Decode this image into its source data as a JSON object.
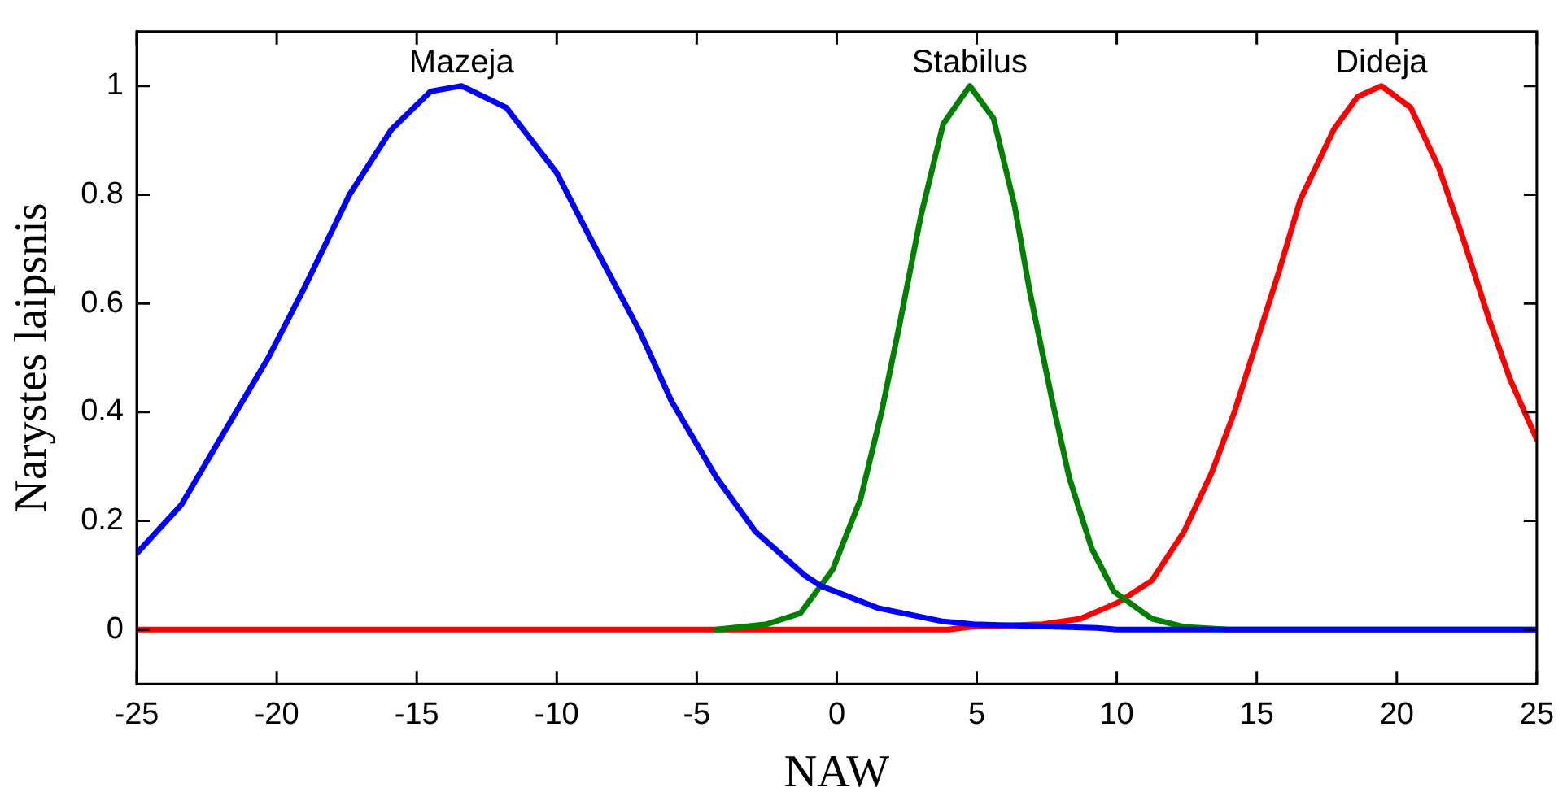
{
  "chart_data": {
    "type": "line",
    "xlabel": "NAW",
    "ylabel": "Narystes laipsnis",
    "xlim": [
      -25,
      25
    ],
    "xticks": [
      -25,
      -20,
      -15,
      -10,
      -5,
      0,
      5,
      10,
      15,
      20,
      25
    ],
    "ylim": [
      -0.1,
      1.1
    ],
    "yticks": [
      0,
      0.2,
      0.4,
      0.6,
      0.8,
      1
    ],
    "marker": "none",
    "line_style": "solid",
    "series": [
      {
        "name": "Mazeja",
        "color": "#0000ff",
        "x": [
          -25,
          -23.4,
          -21.8,
          -20.3,
          -19.0,
          -17.4,
          -15.9,
          -14.5,
          -13.4,
          -11.8,
          -10.0,
          -8.8,
          -7.05,
          -5.9,
          -4.3,
          -2.9,
          -1.15,
          -0.55,
          1.45,
          3.8,
          4.9,
          9.3,
          10,
          25
        ],
        "values": [
          0.14,
          0.23,
          0.37,
          0.5,
          0.63,
          0.8,
          0.92,
          0.99,
          1,
          0.96,
          0.84,
          0.72,
          0.55,
          0.42,
          0.28,
          0.18,
          0.1,
          0.08,
          0.04,
          0.015,
          0.01,
          0.003,
          0,
          0
        ]
      },
      {
        "name": "Stabilus",
        "color": "#008000",
        "x": [
          -4.3,
          -2.5,
          -1.3,
          -0.15,
          0.85,
          1.6,
          2.2,
          3.0,
          3.8,
          4.75,
          5.6,
          6.35,
          6.9,
          7.7,
          8.3,
          9.1,
          9.9,
          11.25,
          12.4,
          14,
          25
        ],
        "values": [
          0,
          0.01,
          0.03,
          0.11,
          0.24,
          0.4,
          0.55,
          0.76,
          0.93,
          1,
          0.94,
          0.78,
          0.62,
          0.42,
          0.28,
          0.15,
          0.07,
          0.02,
          0.005,
          0,
          0
        ]
      },
      {
        "name": "Dideja",
        "color": "#ff0000",
        "x": [
          -25,
          4,
          4.75,
          7.35,
          8.7,
          10.05,
          11.25,
          12.4,
          13.4,
          14.2,
          15.0,
          15.8,
          16.55,
          17.75,
          18.6,
          19.45,
          20.5,
          21.5,
          22.3,
          23.3,
          24.05,
          25
        ],
        "values": [
          0,
          0,
          0.005,
          0.01,
          0.02,
          0.05,
          0.09,
          0.18,
          0.29,
          0.4,
          0.53,
          0.66,
          0.79,
          0.92,
          0.98,
          1,
          0.96,
          0.85,
          0.73,
          0.57,
          0.46,
          0.35
        ]
      }
    ]
  }
}
